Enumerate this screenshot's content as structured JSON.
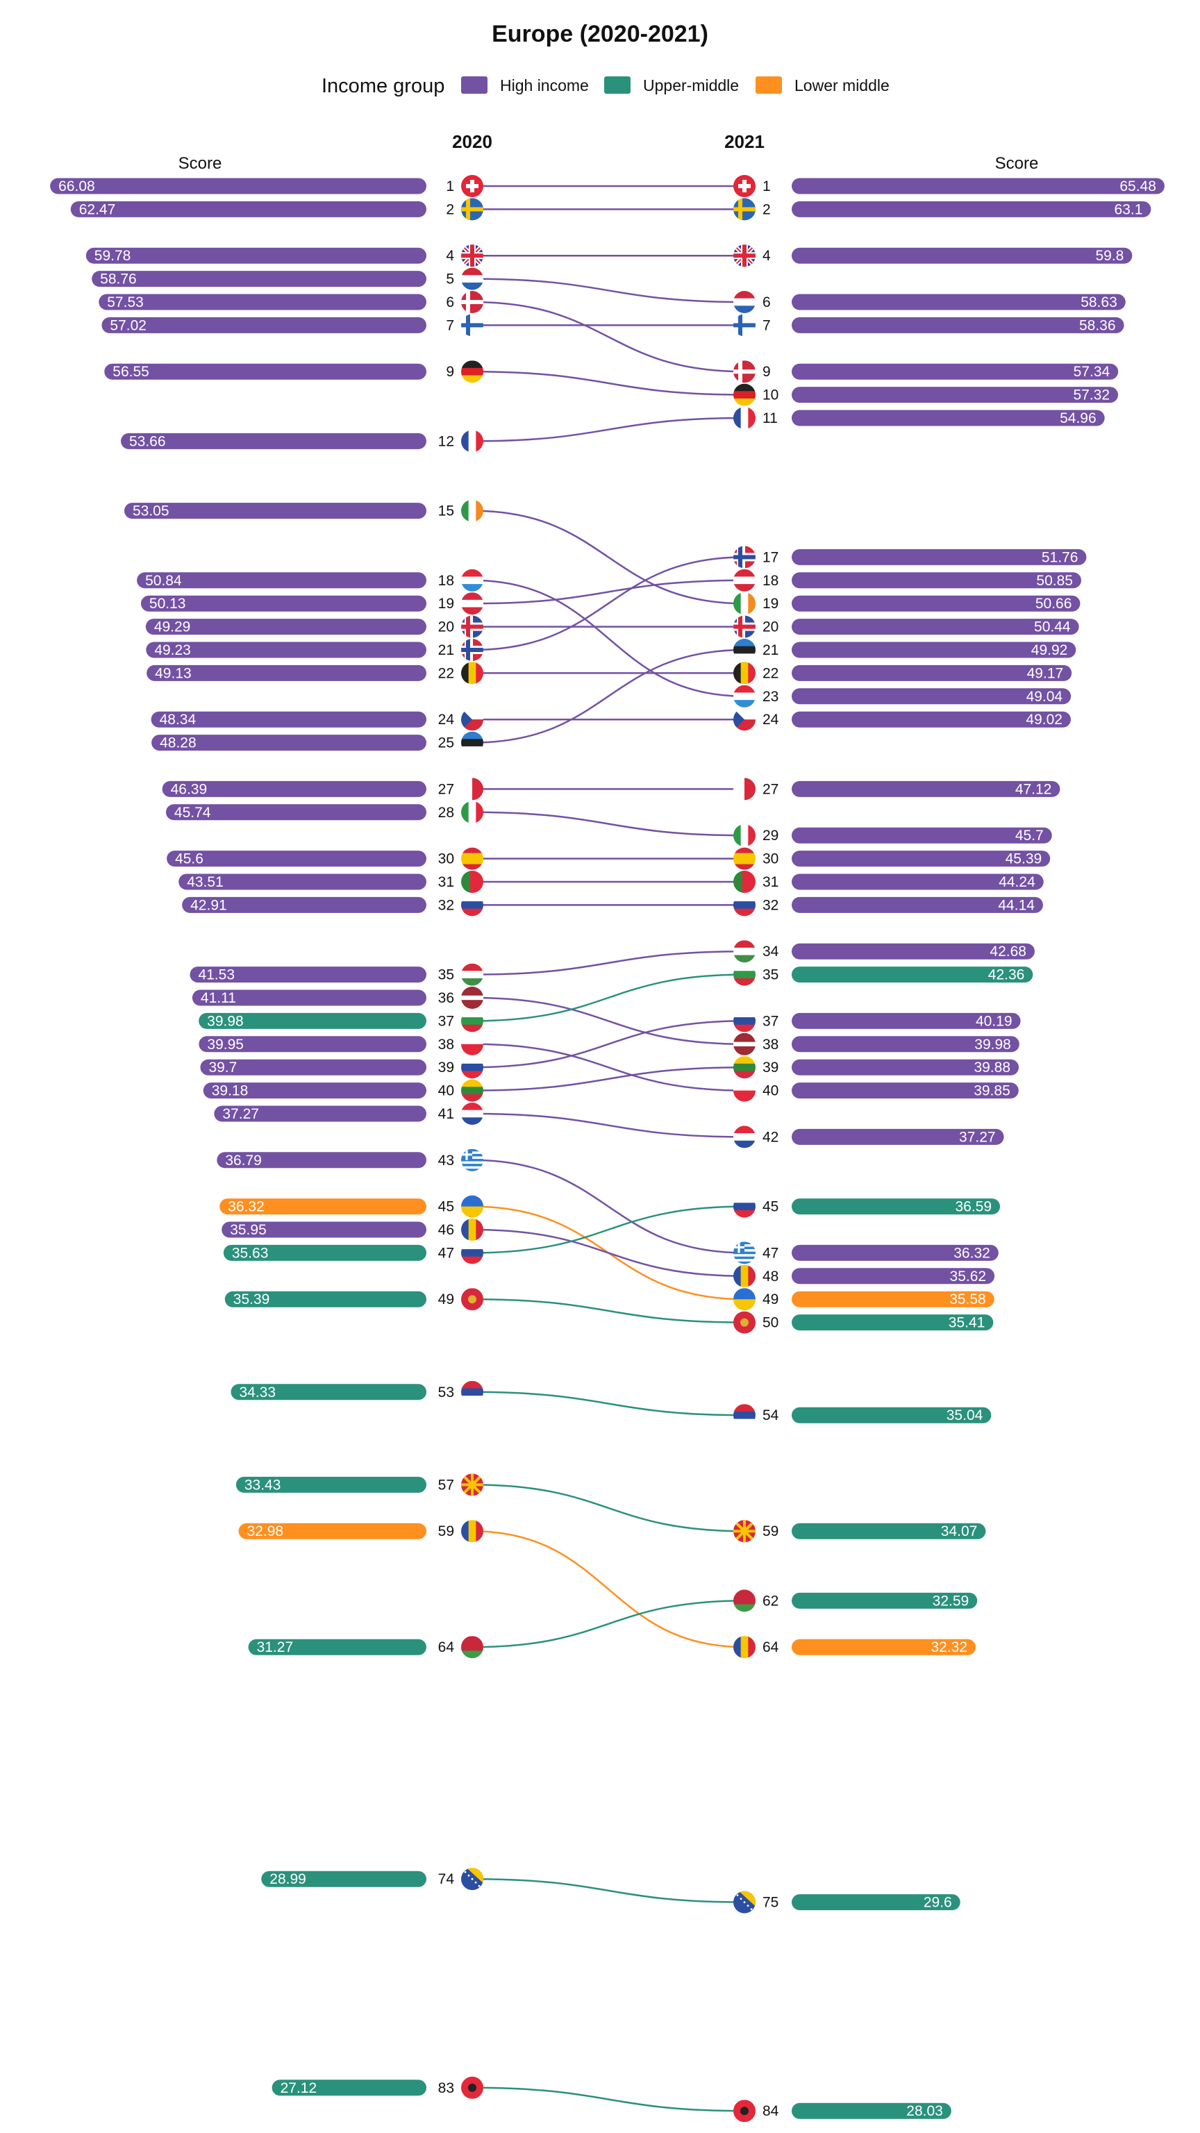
{
  "chart_data": {
    "type": "bump",
    "title": "Europe (2020-2021)",
    "legend": {
      "title": "Income group",
      "placement": "top",
      "items": [
        {
          "name": "High income",
          "color": "#7351a3"
        },
        {
          "name": "Upper-middle",
          "color": "#2a917c"
        },
        {
          "name": "Lower middle",
          "color": "#ff8f1f"
        }
      ]
    },
    "years": [
      "2020",
      "2021"
    ],
    "score_label": "Score",
    "rank_range": [
      1,
      84
    ],
    "bar_scale_max": 70,
    "countries": [
      {
        "country": "Switzerland",
        "group": "High income",
        "flag": "switzerland-flag-icon",
        "rank_2020": 1,
        "score_2020": "66.08",
        "rank_2021": 1,
        "score_2021": "65.48"
      },
      {
        "country": "Sweden",
        "group": "High income",
        "flag": "sweden-flag-icon",
        "rank_2020": 2,
        "score_2020": "62.47",
        "rank_2021": 2,
        "score_2021": "63.1"
      },
      {
        "country": "United Kingdom",
        "group": "High income",
        "flag": "united-kingdom-flag-icon",
        "rank_2020": 4,
        "score_2020": "59.78",
        "rank_2021": 4,
        "score_2021": "59.8"
      },
      {
        "country": "Netherlands",
        "group": "High income",
        "flag": "netherlands-flag-icon",
        "rank_2020": 5,
        "score_2020": "58.76",
        "rank_2021": 6,
        "score_2021": "58.63"
      },
      {
        "country": "Denmark",
        "group": "High income",
        "flag": "denmark-flag-icon",
        "rank_2020": 6,
        "score_2020": "57.53",
        "rank_2021": 9,
        "score_2021": "57.34"
      },
      {
        "country": "Finland",
        "group": "High income",
        "flag": "finland-flag-icon",
        "rank_2020": 7,
        "score_2020": "57.02",
        "rank_2021": 7,
        "score_2021": "58.36"
      },
      {
        "country": "Germany",
        "group": "High income",
        "flag": "germany-flag-icon",
        "rank_2020": 9,
        "score_2020": "56.55",
        "rank_2021": 10,
        "score_2021": "57.32"
      },
      {
        "country": "France",
        "group": "High income",
        "flag": "france-flag-icon",
        "rank_2020": 12,
        "score_2020": "53.66",
        "rank_2021": 11,
        "score_2021": "54.96"
      },
      {
        "country": "Ireland",
        "group": "High income",
        "flag": "ireland-flag-icon",
        "rank_2020": 15,
        "score_2020": "53.05",
        "rank_2021": 19,
        "score_2021": "50.66"
      },
      {
        "country": "Luxembourg",
        "group": "High income",
        "flag": "luxembourg-flag-icon",
        "rank_2020": 18,
        "score_2020": "50.84",
        "rank_2021": 23,
        "score_2021": "49.04"
      },
      {
        "country": "Austria",
        "group": "High income",
        "flag": "austria-flag-icon",
        "rank_2020": 19,
        "score_2020": "50.13",
        "rank_2021": 18,
        "score_2021": "50.85"
      },
      {
        "country": "Iceland",
        "group": "High income",
        "flag": "iceland-flag-icon",
        "rank_2020": 20,
        "score_2020": "49.29",
        "rank_2021": 20,
        "score_2021": "50.44"
      },
      {
        "country": "Norway",
        "group": "High income",
        "flag": "norway-flag-icon",
        "rank_2020": 21,
        "score_2020": "49.23",
        "rank_2021": 17,
        "score_2021": "51.76"
      },
      {
        "country": "Belgium",
        "group": "High income",
        "flag": "belgium-flag-icon",
        "rank_2020": 22,
        "score_2020": "49.13",
        "rank_2021": 22,
        "score_2021": "49.17"
      },
      {
        "country": "Czech Republic",
        "group": "High income",
        "flag": "czech-republic-flag-icon",
        "rank_2020": 24,
        "score_2020": "48.34",
        "rank_2021": 24,
        "score_2021": "49.02"
      },
      {
        "country": "Estonia",
        "group": "High income",
        "flag": "estonia-flag-icon",
        "rank_2020": 25,
        "score_2020": "48.28",
        "rank_2021": 21,
        "score_2021": "49.92"
      },
      {
        "country": "Malta",
        "group": "High income",
        "flag": "malta-flag-icon",
        "rank_2020": 27,
        "score_2020": "46.39",
        "rank_2021": 27,
        "score_2021": "47.12"
      },
      {
        "country": "Italy",
        "group": "High income",
        "flag": "italy-flag-icon",
        "rank_2020": 28,
        "score_2020": "45.74",
        "rank_2021": 29,
        "score_2021": "45.7"
      },
      {
        "country": "Spain",
        "group": "High income",
        "flag": "spain-flag-icon",
        "rank_2020": 30,
        "score_2020": "45.6",
        "rank_2021": 30,
        "score_2021": "45.39"
      },
      {
        "country": "Portugal",
        "group": "High income",
        "flag": "portugal-flag-icon",
        "rank_2020": 31,
        "score_2020": "43.51",
        "rank_2021": 31,
        "score_2021": "44.24"
      },
      {
        "country": "Slovenia",
        "group": "High income",
        "flag": "slovenia-flag-icon",
        "rank_2020": 32,
        "score_2020": "42.91",
        "rank_2021": 32,
        "score_2021": "44.14"
      },
      {
        "country": "Hungary",
        "group": "High income",
        "flag": "hungary-flag-icon",
        "rank_2020": 35,
        "score_2020": "41.53",
        "rank_2021": 34,
        "score_2021": "42.68"
      },
      {
        "country": "Latvia",
        "group": "High income",
        "flag": "latvia-flag-icon",
        "rank_2020": 36,
        "score_2020": "41.11",
        "rank_2021": 38,
        "score_2021": "39.98"
      },
      {
        "country": "Bulgaria",
        "group": "Upper-middle",
        "flag": "bulgaria-flag-icon",
        "rank_2020": 37,
        "score_2020": "39.98",
        "rank_2021": 35,
        "score_2021": "42.36"
      },
      {
        "country": "Poland",
        "group": "High income",
        "flag": "poland-flag-icon",
        "rank_2020": 38,
        "score_2020": "39.95",
        "rank_2021": 40,
        "score_2021": "39.85"
      },
      {
        "country": "Slovakia",
        "group": "High income",
        "flag": "slovakia-flag-icon",
        "rank_2020": 39,
        "score_2020": "39.7",
        "rank_2021": 37,
        "score_2021": "40.19"
      },
      {
        "country": "Lithuania",
        "group": "High income",
        "flag": "lithuania-flag-icon",
        "rank_2020": 40,
        "score_2020": "39.18",
        "rank_2021": 39,
        "score_2021": "39.88"
      },
      {
        "country": "Croatia",
        "group": "High income",
        "flag": "croatia-flag-icon",
        "rank_2020": 41,
        "score_2020": "37.27",
        "rank_2021": 42,
        "score_2021": "37.27"
      },
      {
        "country": "Greece",
        "group": "High income",
        "flag": "greece-flag-icon",
        "rank_2020": 43,
        "score_2020": "36.79",
        "rank_2021": 47,
        "score_2021": "36.32"
      },
      {
        "country": "Ukraine",
        "group": "Lower middle",
        "flag": "ukraine-flag-icon",
        "rank_2020": 45,
        "score_2020": "36.32",
        "rank_2021": 49,
        "score_2021": "35.58"
      },
      {
        "country": "Romania",
        "group": "High income",
        "flag": "romania-flag-icon",
        "rank_2020": 46,
        "score_2020": "35.95",
        "rank_2021": 48,
        "score_2021": "35.62"
      },
      {
        "country": "Russia",
        "group": "Upper-middle",
        "flag": "russia-flag-icon",
        "rank_2020": 47,
        "score_2020": "35.63",
        "rank_2021": 45,
        "score_2021": "36.59"
      },
      {
        "country": "Montenegro",
        "group": "Upper-middle",
        "flag": "montenegro-flag-icon",
        "rank_2020": 49,
        "score_2020": "35.39",
        "rank_2021": 50,
        "score_2021": "35.41"
      },
      {
        "country": "Serbia",
        "group": "Upper-middle",
        "flag": "serbia-flag-icon",
        "rank_2020": 53,
        "score_2020": "34.33",
        "rank_2021": 54,
        "score_2021": "35.04"
      },
      {
        "country": "North Macedonia",
        "group": "Upper-middle",
        "flag": "north-macedonia-flag-icon",
        "rank_2020": 57,
        "score_2020": "33.43",
        "rank_2021": 59,
        "score_2021": "34.07"
      },
      {
        "country": "Moldova",
        "group": "Lower middle",
        "flag": "moldova-flag-icon",
        "rank_2020": 59,
        "score_2020": "32.98",
        "rank_2021": 64,
        "score_2021": "32.32"
      },
      {
        "country": "Belarus",
        "group": "Upper-middle",
        "flag": "belarus-flag-icon",
        "rank_2020": 64,
        "score_2020": "31.27",
        "rank_2021": 62,
        "score_2021": "32.59"
      },
      {
        "country": "Bosnia and Herzegovina",
        "group": "Upper-middle",
        "flag": "bosnia-flag-icon",
        "rank_2020": 74,
        "score_2020": "28.99",
        "rank_2021": 75,
        "score_2021": "29.6"
      },
      {
        "country": "Albania",
        "group": "Upper-middle",
        "flag": "albania-flag-icon",
        "rank_2020": 83,
        "score_2020": "27.12",
        "rank_2021": 84,
        "score_2021": "28.03"
      }
    ]
  }
}
